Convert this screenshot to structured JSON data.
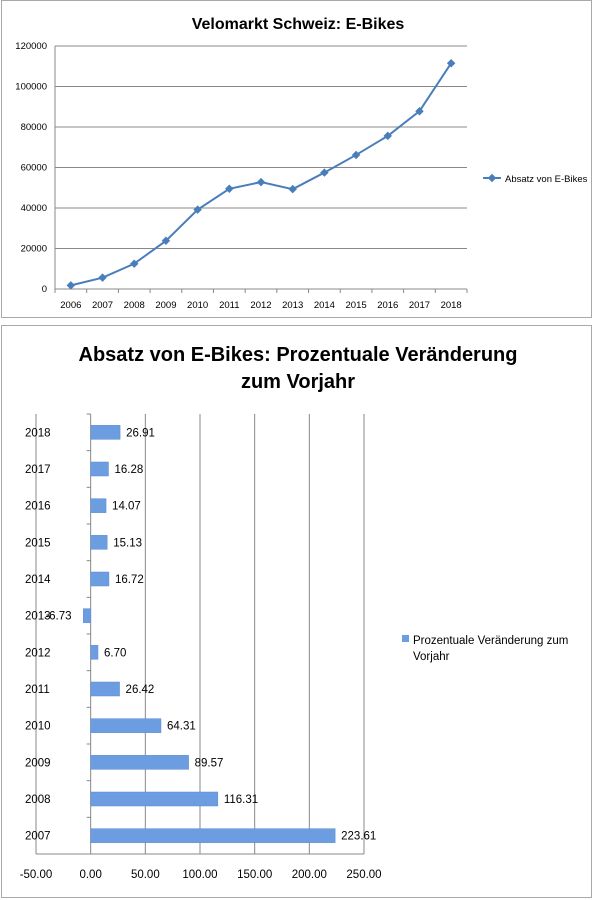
{
  "chart_data": [
    {
      "type": "line",
      "title": "Velomarkt Schweiz: E-Bikes",
      "x": [
        "2006",
        "2007",
        "2008",
        "2009",
        "2010",
        "2011",
        "2012",
        "2013",
        "2014",
        "2015",
        "2016",
        "2017",
        "2018"
      ],
      "series": [
        {
          "name": "Absatz von E-Bikes",
          "values": [
            1800,
            5600,
            12500,
            23800,
            39200,
            49500,
            52800,
            49300,
            57500,
            66200,
            75600,
            87800,
            111500
          ]
        }
      ],
      "yticks": [
        "0",
        "20000",
        "40000",
        "60000",
        "80000",
        "100000",
        "120000"
      ],
      "ylim": [
        0,
        120000
      ],
      "grid": true,
      "legend": "right",
      "color": "#4a7ebb"
    },
    {
      "type": "bar",
      "orientation": "horizontal",
      "title_lines": [
        "Absatz von E-Bikes: Prozentuale Veränderung",
        "zum Vorjahr"
      ],
      "categories": [
        "2018",
        "2017",
        "2016",
        "2015",
        "2014",
        "2013",
        "2012",
        "2011",
        "2010",
        "2009",
        "2008",
        "2007"
      ],
      "series": [
        {
          "name": "Prozentuale Veränderung zum Vorjahr",
          "values": [
            26.91,
            16.28,
            14.07,
            15.13,
            16.72,
            -6.73,
            6.7,
            26.42,
            64.31,
            89.57,
            116.31,
            223.61
          ],
          "labels": [
            "26.91",
            "16.28",
            "14.07",
            "15.13",
            "16.72",
            "-6.73",
            "6.70",
            "26.42",
            "64.31",
            "89.57",
            "116.31",
            "223.61"
          ]
        }
      ],
      "xticks": [
        "-50.00",
        "0.00",
        "50.00",
        "100.00",
        "150.00",
        "200.00",
        "250.00"
      ],
      "xlim": [
        -50,
        250
      ],
      "grid": true,
      "legend": "right",
      "legend_lines": [
        "Prozentuale Veränderung zum",
        "Vorjahr"
      ],
      "color": "#6d9de1"
    }
  ]
}
